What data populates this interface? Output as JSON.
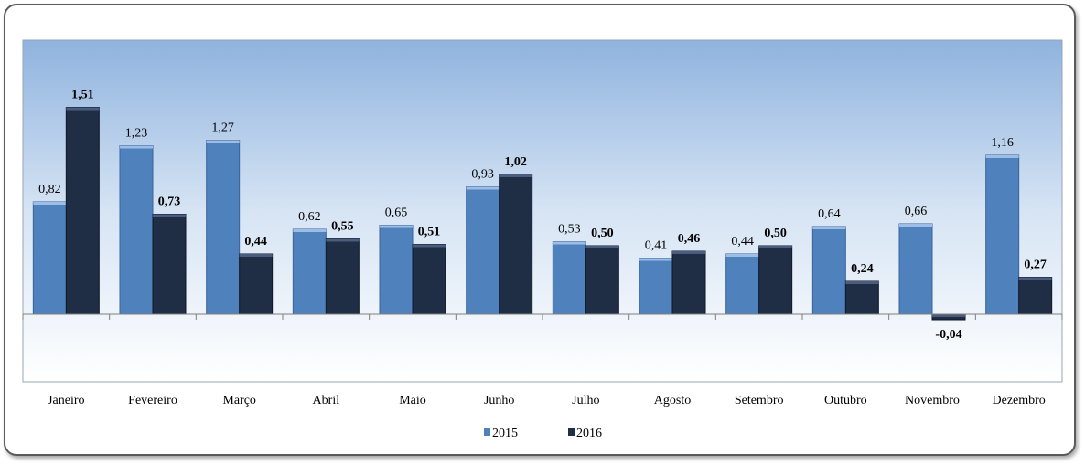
{
  "chart_data": {
    "type": "bar",
    "categories": [
      "Janeiro",
      "Fevereiro",
      "Março",
      "Abril",
      "Maio",
      "Junho",
      "Julho",
      "Agosto",
      "Setembro",
      "Outubro",
      "Novembro",
      "Dezembro"
    ],
    "series": [
      {
        "name": "2015",
        "values": [
          0.82,
          1.23,
          1.27,
          0.62,
          0.65,
          0.93,
          0.53,
          0.41,
          0.44,
          0.64,
          0.66,
          1.16
        ],
        "labels": [
          "0,82",
          "1,23",
          "1,27",
          "0,62",
          "0,65",
          "0,93",
          "0,53",
          "0,41",
          "0,44",
          "0,64",
          "0,66",
          "1,16"
        ],
        "color": "#4f81bd",
        "bold_labels": false
      },
      {
        "name": "2016",
        "values": [
          1.51,
          0.73,
          0.44,
          0.55,
          0.51,
          1.02,
          0.5,
          0.46,
          0.5,
          0.24,
          -0.04,
          0.27
        ],
        "labels": [
          "1,51",
          "0,73",
          "0,44",
          "0,55",
          "0,51",
          "1,02",
          "0,50",
          "0,46",
          "0,50",
          "0,24",
          "-0,04",
          "0,27"
        ],
        "color": "#1f2d45",
        "bold_labels": true
      }
    ],
    "ylim": [
      -0.5,
      2.0
    ],
    "grid": false,
    "legend_position": "bottom",
    "plot_background": "gradient blue to white",
    "colors": {
      "series_2015": "#4f81bd",
      "series_2016": "#1f2d45",
      "plot_top": "#8fb3de",
      "plot_bottom": "#ffffff"
    }
  }
}
